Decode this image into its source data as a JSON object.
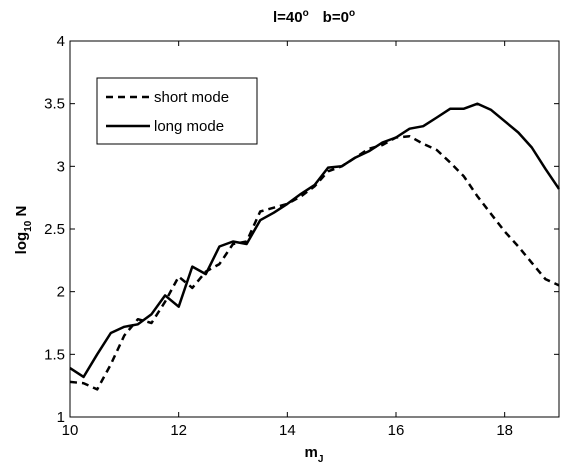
{
  "chart_data": {
    "type": "line",
    "title_parts": {
      "l_label": "l=40",
      "l_sup": "o",
      "b_label": "b=0",
      "b_sup": "o"
    },
    "xlabel_main": "m",
    "xlabel_sub": "J",
    "ylabel_main": "log",
    "ylabel_sub": "10",
    "ylabel_tail": " N",
    "xlim": [
      10,
      19
    ],
    "ylim": [
      1,
      4
    ],
    "xticks": [
      10,
      12,
      14,
      16,
      18
    ],
    "yticks": [
      1,
      1.5,
      2,
      2.5,
      3,
      3.5,
      4
    ],
    "ytick_labels": [
      "1",
      "1.5",
      "2",
      "2.5",
      "3",
      "3.5",
      "4"
    ],
    "grid": false,
    "legend_position": "top-left",
    "series": [
      {
        "name": "short mode",
        "style": "dashed",
        "color": "#000000",
        "x": [
          10,
          10.25,
          10.5,
          10.75,
          11,
          11.25,
          11.5,
          11.75,
          12,
          12.25,
          12.5,
          12.75,
          13,
          13.25,
          13.5,
          13.75,
          14,
          14.25,
          14.5,
          14.75,
          15,
          15.25,
          15.5,
          15.75,
          16,
          16.25,
          16.5,
          16.75,
          17,
          17.25,
          17.5,
          17.75,
          18,
          18.25,
          18.5,
          18.75,
          19
        ],
        "y": [
          1.28,
          1.27,
          1.22,
          1.42,
          1.65,
          1.78,
          1.75,
          1.92,
          2.12,
          2.03,
          2.16,
          2.22,
          2.38,
          2.4,
          2.64,
          2.67,
          2.7,
          2.76,
          2.84,
          2.96,
          3.0,
          3.07,
          3.14,
          3.17,
          3.23,
          3.24,
          3.18,
          3.13,
          3.03,
          2.92,
          2.76,
          2.62,
          2.48,
          2.36,
          2.23,
          2.1,
          2.05
        ]
      },
      {
        "name": "long mode",
        "style": "solid",
        "color": "#000000",
        "x": [
          10,
          10.25,
          10.5,
          10.75,
          11,
          11.25,
          11.5,
          11.75,
          12,
          12.25,
          12.5,
          12.75,
          13,
          13.25,
          13.5,
          13.75,
          14,
          14.25,
          14.5,
          14.75,
          15,
          15.25,
          15.5,
          15.75,
          16,
          16.25,
          16.5,
          16.75,
          17,
          17.25,
          17.5,
          17.75,
          18,
          18.25,
          18.5,
          18.75,
          19
        ],
        "y": [
          1.39,
          1.32,
          1.5,
          1.67,
          1.72,
          1.74,
          1.82,
          1.97,
          1.88,
          2.2,
          2.14,
          2.36,
          2.4,
          2.38,
          2.57,
          2.63,
          2.7,
          2.78,
          2.85,
          2.99,
          3.0,
          3.07,
          3.12,
          3.19,
          3.23,
          3.3,
          3.32,
          3.39,
          3.46,
          3.46,
          3.5,
          3.45,
          3.36,
          3.27,
          3.15,
          2.98,
          2.82
        ]
      }
    ]
  }
}
